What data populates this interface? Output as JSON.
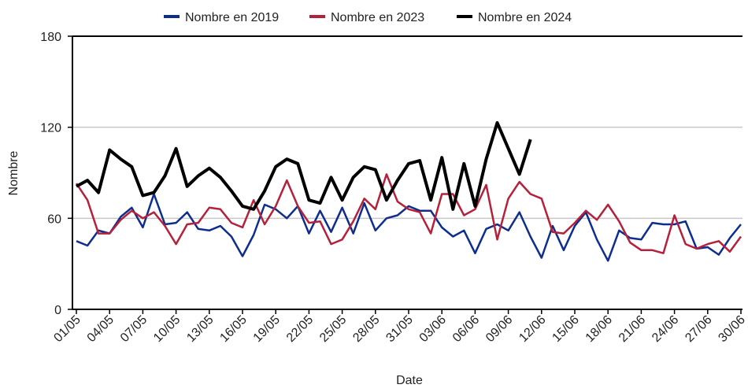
{
  "chart_data": {
    "type": "line",
    "xlabel": "Date",
    "ylabel": "Nombre",
    "categories": [
      "01/05",
      null,
      null,
      "04/05",
      null,
      null,
      "07/05",
      null,
      null,
      "10/05",
      null,
      null,
      "13/05",
      null,
      null,
      "16/05",
      null,
      null,
      "19/05",
      null,
      null,
      "22/05",
      null,
      null,
      "25/05",
      null,
      null,
      "28/05",
      null,
      null,
      "31/05",
      null,
      null,
      "03/06",
      null,
      null,
      "06/06",
      null,
      null,
      "09/06",
      null,
      null,
      "12/06",
      null,
      null,
      "15/06",
      null,
      null,
      "18/06",
      null,
      null,
      "21/06",
      null,
      null,
      "24/06",
      null,
      null,
      "27/06",
      null,
      null,
      "30/06"
    ],
    "series": [
      {
        "name": "Nombre en 2019",
        "color": "#0d2e8f",
        "values": [
          45,
          42,
          52,
          50,
          61,
          67,
          54,
          76,
          56,
          57,
          64,
          53,
          52,
          55,
          48,
          35,
          49,
          69,
          66,
          60,
          68,
          50,
          65,
          51,
          67,
          50,
          70,
          52,
          60,
          62,
          68,
          65,
          65,
          54,
          48,
          52,
          37,
          53,
          56,
          52,
          64,
          48,
          34,
          55,
          39,
          55,
          64,
          46,
          32,
          52,
          47,
          46,
          57,
          56,
          56,
          58,
          40,
          41,
          36,
          47,
          56
        ]
      },
      {
        "name": "Nombre en 2023",
        "color": "#b5213a",
        "values": [
          83,
          72,
          50,
          50,
          59,
          65,
          60,
          64,
          55,
          43,
          56,
          57,
          67,
          66,
          57,
          54,
          72,
          56,
          68,
          85,
          68,
          57,
          58,
          43,
          46,
          58,
          73,
          66,
          89,
          71,
          66,
          64,
          50,
          76,
          76,
          62,
          66,
          82,
          46,
          73,
          84,
          76,
          73,
          51,
          50,
          57,
          65,
          59,
          69,
          58,
          44,
          39,
          39,
          37,
          62,
          43,
          40,
          43,
          45,
          38,
          48
        ]
      },
      {
        "name": "Nombre en 2024",
        "color": "#000000",
        "values": [
          81,
          85,
          77,
          105,
          99,
          94,
          75,
          77,
          88,
          106,
          81,
          88,
          93,
          87,
          78,
          68,
          66,
          78,
          94,
          99,
          96,
          72,
          70,
          87,
          72,
          87,
          94,
          92,
          72,
          85,
          96,
          98,
          72,
          100,
          66,
          96,
          68,
          99,
          123,
          106,
          89,
          112,
          null,
          null,
          null,
          null,
          null,
          null,
          null,
          null,
          null,
          null,
          null,
          null,
          null,
          null,
          null,
          null,
          null,
          null,
          null
        ]
      }
    ],
    "ylim": [
      0,
      180
    ],
    "yticks": [
      0,
      60,
      120,
      180
    ],
    "grid": true,
    "legend": "top"
  }
}
